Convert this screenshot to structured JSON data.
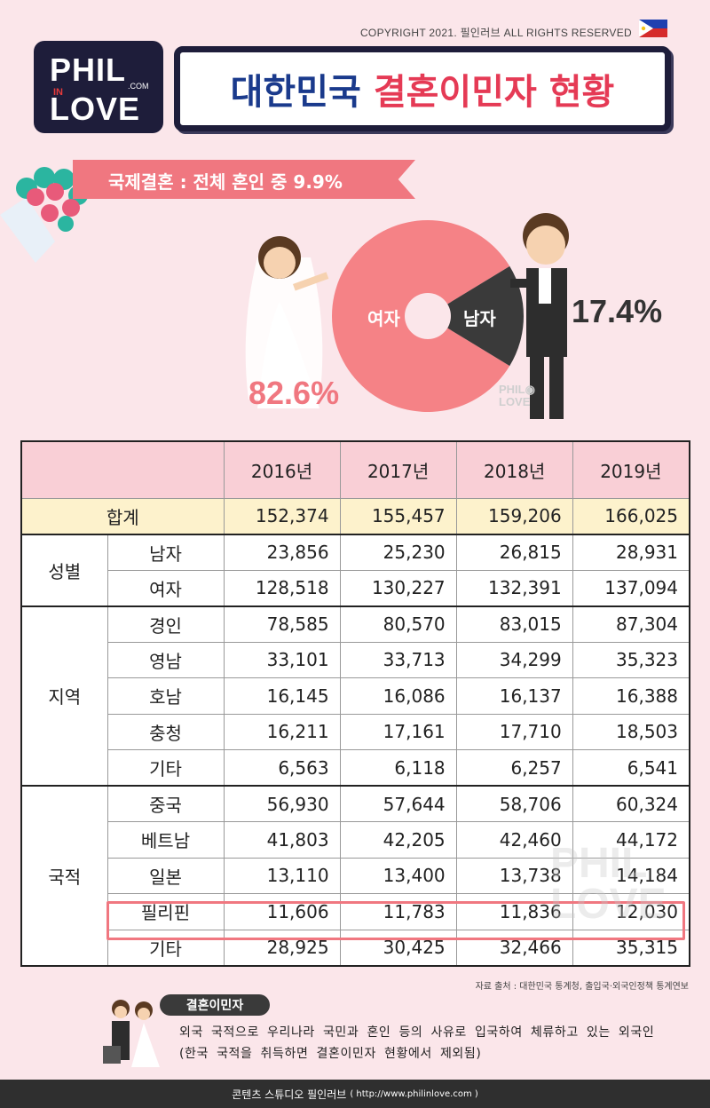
{
  "header": {
    "copyright": "COPYRIGHT 2021. 필인러브 ALL RIGHTS RESERVED",
    "logo": {
      "line1": "PHIL",
      "in": "IN",
      "line2": "LOVE",
      "com": ".COM"
    },
    "title_part1": "대한민국",
    "title_part2": "결혼이민자 현황",
    "accent_blue": "#1a3a8c",
    "accent_red": "#e53a55"
  },
  "banner": {
    "text": "국제결혼 : 전체 혼인 중 9.9%"
  },
  "donut": {
    "female_label": "여자",
    "male_label": "남자",
    "female_pct": "82.6%",
    "male_pct": "17.4%",
    "female_value": 82.6,
    "male_value": 17.4,
    "female_color": "#f58286",
    "male_color": "#3a3a3a"
  },
  "table": {
    "columns": [
      "2016년",
      "2017년",
      "2018년",
      "2019년"
    ],
    "total": {
      "label": "합계",
      "values": [
        "152,374",
        "155,457",
        "159,206",
        "166,025"
      ]
    },
    "groups": [
      {
        "name": "성별",
        "rows": [
          {
            "label": "남자",
            "values": [
              "23,856",
              "25,230",
              "26,815",
              "28,931"
            ]
          },
          {
            "label": "여자",
            "values": [
              "128,518",
              "130,227",
              "132,391",
              "137,094"
            ]
          }
        ]
      },
      {
        "name": "지역",
        "rows": [
          {
            "label": "경인",
            "values": [
              "78,585",
              "80,570",
              "83,015",
              "87,304"
            ]
          },
          {
            "label": "영남",
            "values": [
              "33,101",
              "33,713",
              "34,299",
              "35,323"
            ]
          },
          {
            "label": "호남",
            "values": [
              "16,145",
              "16,086",
              "16,137",
              "16,388"
            ]
          },
          {
            "label": "충청",
            "values": [
              "16,211",
              "17,161",
              "17,710",
              "18,503"
            ]
          },
          {
            "label": "기타",
            "values": [
              "6,563",
              "6,118",
              "6,257",
              "6,541"
            ]
          }
        ]
      },
      {
        "name": "국적",
        "rows": [
          {
            "label": "중국",
            "values": [
              "56,930",
              "57,644",
              "58,706",
              "60,324"
            ]
          },
          {
            "label": "베트남",
            "values": [
              "41,803",
              "42,205",
              "42,460",
              "44,172"
            ]
          },
          {
            "label": "일본",
            "values": [
              "13,110",
              "13,400",
              "13,738",
              "14,184"
            ]
          },
          {
            "label": "필리핀",
            "values": [
              "11,606",
              "11,783",
              "11,836",
              "12,030"
            ],
            "highlight": true
          },
          {
            "label": "기타",
            "values": [
              "28,925",
              "30,425",
              "32,466",
              "35,315"
            ]
          }
        ]
      }
    ]
  },
  "source": "자료 출처 : 대한민국 통계청, 출입국·외국인정책 통계연보",
  "definition": {
    "tag": "결혼이민자",
    "line1": "외국 국적으로 우리나라 국민과 혼인 등의 사유로 입국하여 체류하고 있는 외국인",
    "line2": "(한국 국적을 취득하면 결혼이민자 현황에서 제외됨)"
  },
  "footer": {
    "text": "콘텐츠 스튜디오 필인러브",
    "url": "( http://www.philinlove.com )"
  }
}
